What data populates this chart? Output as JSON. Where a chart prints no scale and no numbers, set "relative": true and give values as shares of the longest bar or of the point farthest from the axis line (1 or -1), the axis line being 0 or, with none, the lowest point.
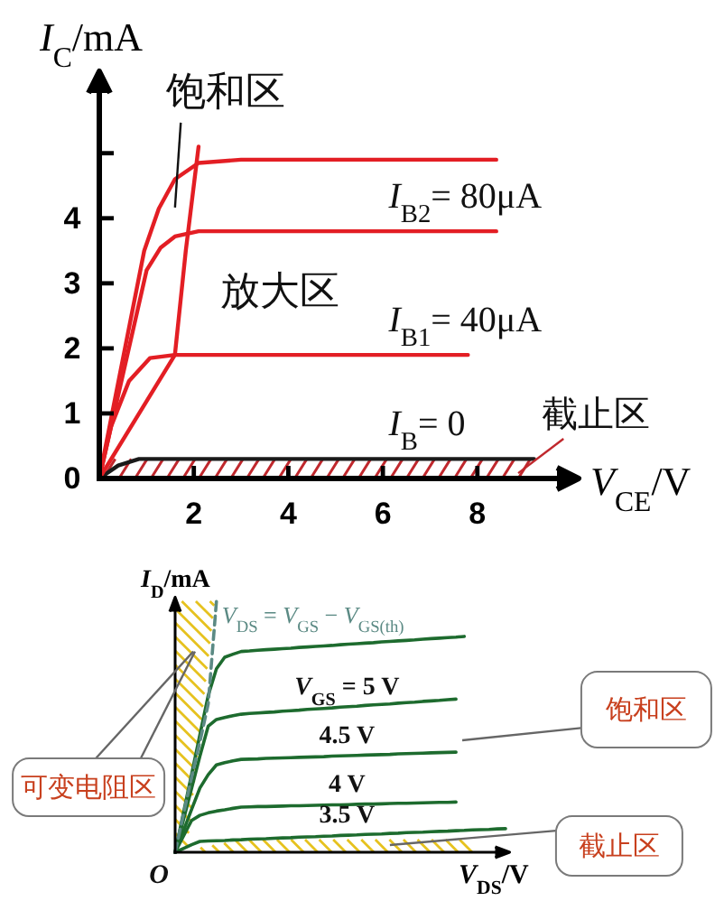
{
  "chart_data": [
    {
      "type": "line",
      "xlabel": "V$_{CE}$/V",
      "ylabel": "I$_{C}$/mA",
      "xlim": [
        0,
        10.2
      ],
      "ylim": [
        0,
        6.3
      ],
      "xticks": [
        2,
        4,
        6,
        8
      ],
      "yticks": [
        0,
        1,
        2,
        3,
        4,
        {
          "value": 5,
          "label": null
        }
      ],
      "series": [
        {
          "color": "#e31e24",
          "x": [
            0,
            0.95,
            1.26,
            1.6,
            2.1,
            3,
            8.4
          ],
          "values": [
            0,
            3.5,
            4.15,
            4.6,
            4.85,
            4.9,
            4.9
          ]
        },
        {
          "name": "I$_{B2}$= 80μA",
          "color": "#e31e24",
          "x": [
            0,
            1.0,
            1.3,
            1.6,
            2.1,
            8.4
          ],
          "values": [
            0,
            3.2,
            3.55,
            3.72,
            3.8,
            3.8
          ]
        },
        {
          "name": "I$_{B1}$= 40μA",
          "color": "#e31e24",
          "x": [
            0,
            0.25,
            0.63,
            1.07,
            1.6,
            7.8
          ],
          "values": [
            0,
            0.8,
            1.5,
            1.85,
            1.9,
            1.9
          ]
        },
        {
          "name": "I$_{B}$= 0",
          "color": "#1a1a1a",
          "x": [
            0,
            0.4,
            0.84,
            9.2
          ],
          "values": [
            0,
            0.2,
            0.3,
            0.3
          ]
        },
        {
          "color": "#e31e24",
          "x": [
            0,
            1.6,
            1.83,
            2.1
          ],
          "values": [
            0,
            1.9,
            3.5,
            5.1
          ]
        }
      ],
      "annotations": [
        "饱和区",
        "放大区",
        "截止区"
      ]
    },
    {
      "type": "line",
      "relative": true,
      "xlabel": "V$_{DS}$/V",
      "ylabel": "I$_{D}$/mA",
      "categories": [
        null,
        null,
        null,
        null,
        null,
        null,
        null,
        null,
        null,
        null,
        null,
        null,
        null,
        null,
        null,
        null,
        null,
        null,
        null,
        null,
        null,
        null,
        null,
        null,
        null,
        null,
        null,
        null,
        null,
        null,
        null,
        null,
        null,
        null,
        null,
        null,
        null,
        null,
        null,
        null,
        null
      ],
      "series": [
        {
          "color": "#1d6b2e",
          "values": [
            0,
            0.156,
            0.312,
            0.468,
            0.624,
            0.731,
            0.777,
            0.789,
            0.8,
            0.802,
            0.805,
            0.807,
            0.809,
            0.811,
            0.813,
            0.816,
            0.818,
            0.82,
            0.822,
            0.824,
            0.827,
            0.829,
            0.831,
            0.833,
            0.835,
            0.838,
            0.84,
            0.842,
            0.844,
            0.846,
            0.849,
            0.851,
            0.853,
            0.855,
            0.857,
            0.86,
            null,
            null,
            null,
            null,
            null
          ]
        },
        {
          "name": "V$_{GS}$ = 5 V",
          "color": "#1d6b2e",
          "values": [
            0,
            0.128,
            0.255,
            0.383,
            0.502,
            0.529,
            0.537,
            0.544,
            0.55,
            0.553,
            0.555,
            0.557,
            0.559,
            0.562,
            0.564,
            0.566,
            0.569,
            0.571,
            0.573,
            0.575,
            0.578,
            0.58,
            0.582,
            0.585,
            0.587,
            0.589,
            0.591,
            0.594,
            0.596,
            0.598,
            0.601,
            0.603,
            0.605,
            0.608,
            0.61,
            null,
            null,
            null,
            null,
            null,
            null
          ]
        },
        {
          "name": "4.5 V",
          "color": "#1d6b2e",
          "values": [
            0,
            0.085,
            0.171,
            0.256,
            0.309,
            0.348,
            0.357,
            0.364,
            0.37,
            0.371,
            0.372,
            0.374,
            0.375,
            0.376,
            0.377,
            0.378,
            0.379,
            0.38,
            0.381,
            0.383,
            0.384,
            0.385,
            0.386,
            0.387,
            0.388,
            0.389,
            0.39,
            0.392,
            0.393,
            0.394,
            0.395,
            0.396,
            0.397,
            0.398,
            0.399,
            null,
            null,
            null,
            null,
            null,
            null
          ]
        },
        {
          "name": "4 V",
          "color": "#1d6b2e",
          "values": [
            0,
            0.064,
            0.127,
            0.147,
            0.157,
            0.164,
            0.169,
            0.175,
            0.18,
            0.181,
            0.182,
            0.182,
            0.183,
            0.184,
            0.185,
            0.185,
            0.186,
            0.187,
            0.188,
            0.189,
            0.189,
            0.19,
            0.191,
            0.192,
            0.192,
            0.193,
            0.194,
            0.195,
            0.195,
            0.196,
            0.197,
            0.198,
            0.199,
            0.199,
            0.2,
            null,
            null,
            null,
            null,
            null,
            null
          ]
        },
        {
          "name": "3.5 V",
          "color": "#1d6b2e",
          "values": [
            0,
            0.015,
            0.03,
            0.043,
            0.045,
            0.046,
            0.047,
            0.049,
            0.05,
            0.052,
            0.053,
            0.054,
            0.056,
            0.057,
            0.058,
            0.06,
            0.061,
            0.062,
            0.064,
            0.065,
            0.067,
            0.068,
            0.069,
            0.071,
            0.072,
            0.073,
            0.075,
            0.076,
            0.078,
            0.079,
            0.08,
            0.082,
            0.083,
            0.084,
            0.086,
            0.087,
            0.089,
            0.09,
            0.091,
            0.093,
            0.094
          ]
        },
        {
          "name": "V$_{DS}$ = V$_{GS}$ − V$_{GS(th)}$",
          "color": "#5b8a84",
          "line_style": "dashed",
          "values": [
            0,
            0.15,
            0.3,
            0.44,
            0.59,
            1,
            null,
            null,
            null,
            null,
            null,
            null,
            null,
            null,
            null,
            null,
            null,
            null,
            null,
            null,
            null,
            null,
            null,
            null,
            null,
            null,
            null,
            null,
            null,
            null,
            null,
            null,
            null,
            null,
            null,
            null,
            null,
            null,
            null,
            null,
            null
          ]
        }
      ],
      "annotations": [
        "饱和区",
        "可变电阻区",
        "截止区",
        "O"
      ]
    }
  ]
}
